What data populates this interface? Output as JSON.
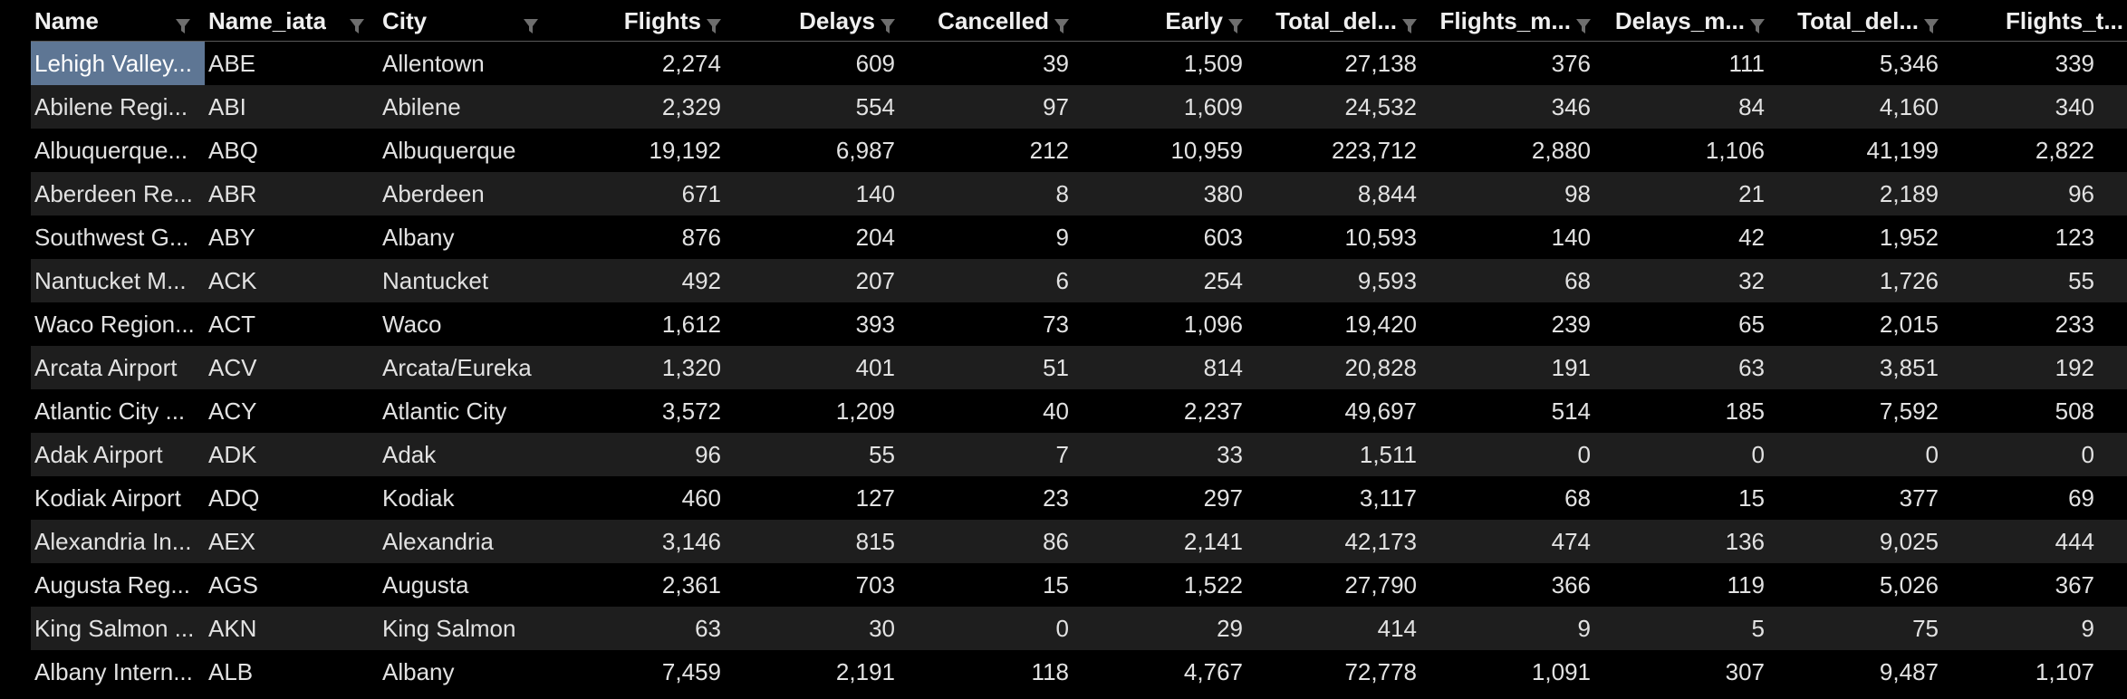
{
  "table": {
    "columns": [
      {
        "label": "Name",
        "align": "left"
      },
      {
        "label": "Name_iata",
        "align": "left"
      },
      {
        "label": "City",
        "align": "left"
      },
      {
        "label": "Flights",
        "align": "right"
      },
      {
        "label": "Delays",
        "align": "right"
      },
      {
        "label": "Cancelled",
        "align": "right"
      },
      {
        "label": "Early",
        "align": "right"
      },
      {
        "label": "Total_del...",
        "align": "right"
      },
      {
        "label": "Flights_m...",
        "align": "right"
      },
      {
        "label": "Delays_m...",
        "align": "right"
      },
      {
        "label": "Total_del...",
        "align": "right"
      },
      {
        "label": "Flights_t...",
        "align": "right"
      }
    ],
    "rows": [
      [
        "Lehigh Valley...",
        "ABE",
        "Allentown",
        "2,274",
        "609",
        "39",
        "1,509",
        "27,138",
        "376",
        "111",
        "5,346",
        "339"
      ],
      [
        "Abilene Regi...",
        "ABI",
        "Abilene",
        "2,329",
        "554",
        "97",
        "1,609",
        "24,532",
        "346",
        "84",
        "4,160",
        "340"
      ],
      [
        "Albuquerque...",
        "ABQ",
        "Albuquerque",
        "19,192",
        "6,987",
        "212",
        "10,959",
        "223,712",
        "2,880",
        "1,106",
        "41,199",
        "2,822"
      ],
      [
        "Aberdeen Re...",
        "ABR",
        "Aberdeen",
        "671",
        "140",
        "8",
        "380",
        "8,844",
        "98",
        "21",
        "2,189",
        "96"
      ],
      [
        "Southwest G...",
        "ABY",
        "Albany",
        "876",
        "204",
        "9",
        "603",
        "10,593",
        "140",
        "42",
        "1,952",
        "123"
      ],
      [
        "Nantucket M...",
        "ACK",
        "Nantucket",
        "492",
        "207",
        "6",
        "254",
        "9,593",
        "68",
        "32",
        "1,726",
        "55"
      ],
      [
        "Waco Region...",
        "ACT",
        "Waco",
        "1,612",
        "393",
        "73",
        "1,096",
        "19,420",
        "239",
        "65",
        "2,015",
        "233"
      ],
      [
        "Arcata Airport",
        "ACV",
        "Arcata/Eureka",
        "1,320",
        "401",
        "51",
        "814",
        "20,828",
        "191",
        "63",
        "3,851",
        "192"
      ],
      [
        "Atlantic City ...",
        "ACY",
        "Atlantic City",
        "3,572",
        "1,209",
        "40",
        "2,237",
        "49,697",
        "514",
        "185",
        "7,592",
        "508"
      ],
      [
        "Adak Airport",
        "ADK",
        "Adak",
        "96",
        "55",
        "7",
        "33",
        "1,511",
        "0",
        "0",
        "0",
        "0"
      ],
      [
        "Kodiak Airport",
        "ADQ",
        "Kodiak",
        "460",
        "127",
        "23",
        "297",
        "3,117",
        "68",
        "15",
        "377",
        "69"
      ],
      [
        "Alexandria In...",
        "AEX",
        "Alexandria",
        "3,146",
        "815",
        "86",
        "2,141",
        "42,173",
        "474",
        "136",
        "9,025",
        "444"
      ],
      [
        "Augusta Reg...",
        "AGS",
        "Augusta",
        "2,361",
        "703",
        "15",
        "1,522",
        "27,790",
        "366",
        "119",
        "5,026",
        "367"
      ],
      [
        "King Salmon ...",
        "AKN",
        "King Salmon",
        "63",
        "30",
        "0",
        "29",
        "414",
        "9",
        "5",
        "75",
        "9"
      ],
      [
        "Albany Intern...",
        "ALB",
        "Albany",
        "7,459",
        "2,191",
        "118",
        "4,767",
        "72,778",
        "1,091",
        "307",
        "9,487",
        "1,107"
      ]
    ],
    "selected_cell": {
      "row": 0,
      "col": 0
    },
    "colors": {
      "background": "#000000",
      "stripe": "#1e1e1e",
      "selection": "#5e7694",
      "text": "#e2e2e2"
    },
    "icons": {
      "filter": "filter-funnel-icon"
    }
  }
}
